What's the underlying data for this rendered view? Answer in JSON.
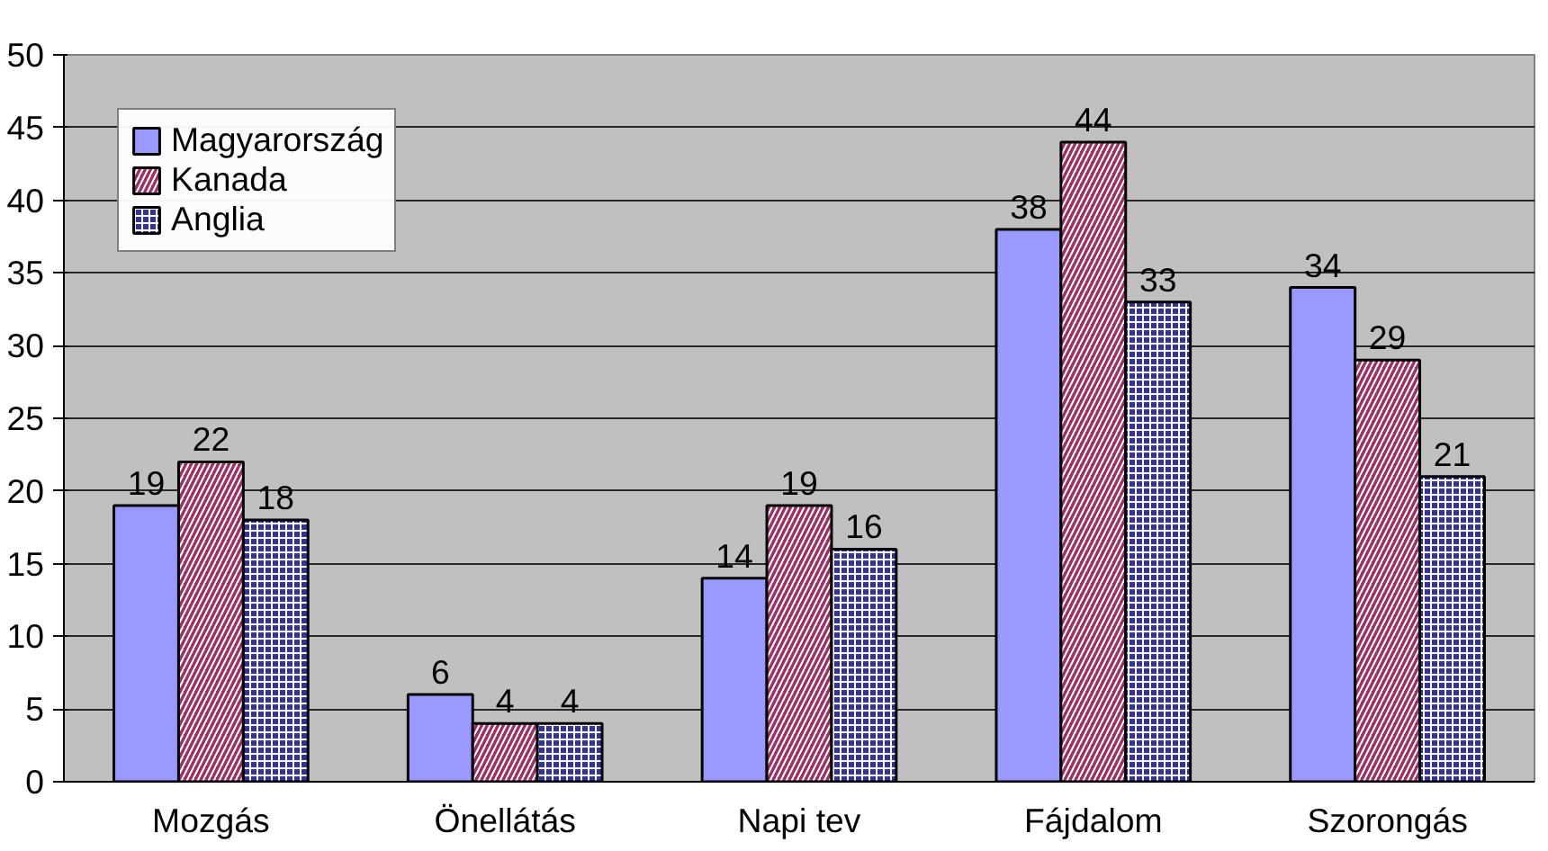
{
  "chart_data": {
    "type": "bar",
    "categories": [
      "Mozgás",
      "Önellátás",
      "Napi tev",
      "Fájdalom",
      "Szorongás"
    ],
    "series": [
      {
        "name": "Magyarország",
        "color": "#9999ff",
        "values": [
          19,
          6,
          14,
          38,
          34
        ]
      },
      {
        "name": "Kanada",
        "color": "#993366",
        "values": [
          22,
          4,
          19,
          44,
          29
        ]
      },
      {
        "name": "Anglia",
        "color": "#333399",
        "values": [
          18,
          4,
          16,
          33,
          21
        ]
      }
    ],
    "ylim": [
      0,
      50
    ],
    "yticks": [
      0,
      5,
      10,
      15,
      20,
      25,
      30,
      35,
      40,
      45,
      50
    ],
    "grid": "y",
    "legend": "top left",
    "data_labels": true
  }
}
